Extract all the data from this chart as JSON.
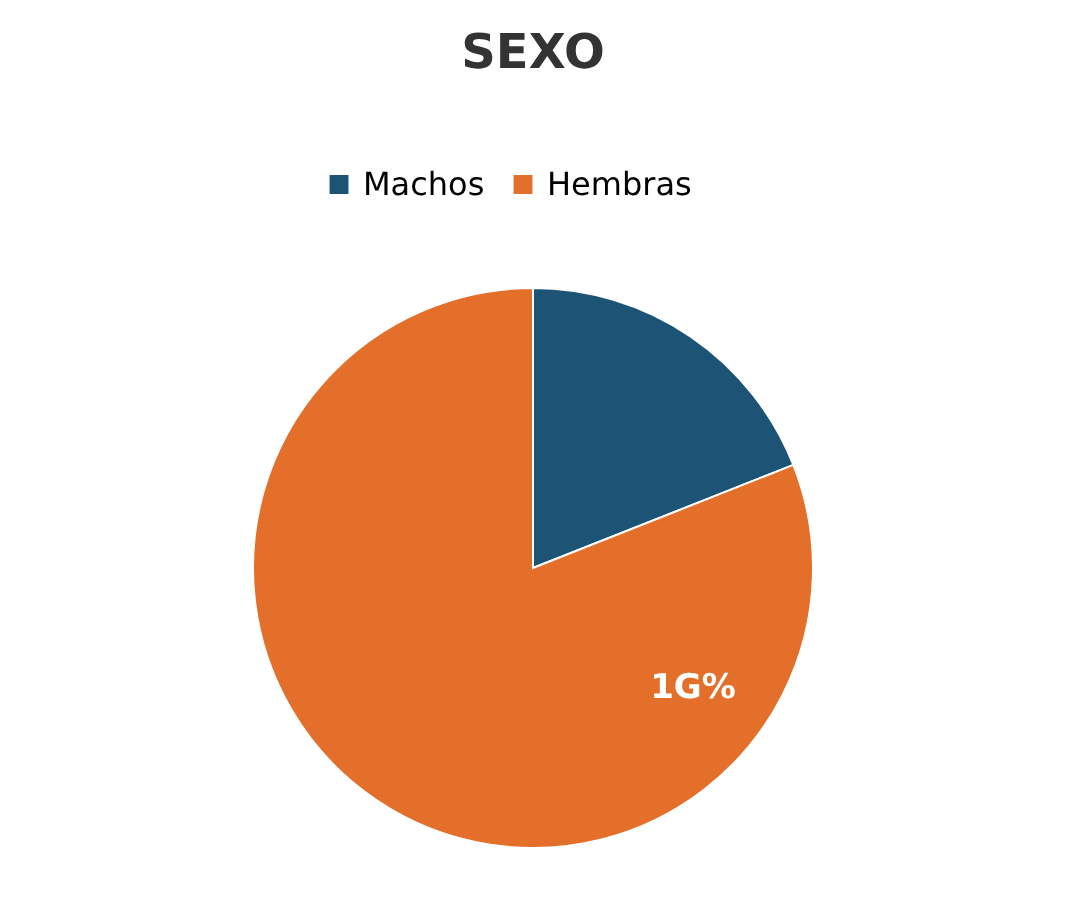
{
  "chart_data": {
    "type": "pie",
    "title": "SEXO",
    "categories": [
      "Machos",
      "Hembras"
    ],
    "values": [
      19,
      81
    ],
    "colors": [
      "#1d5475",
      "#e36f2b"
    ],
    "annotations": [
      "1G%"
    ],
    "legend": "top"
  }
}
